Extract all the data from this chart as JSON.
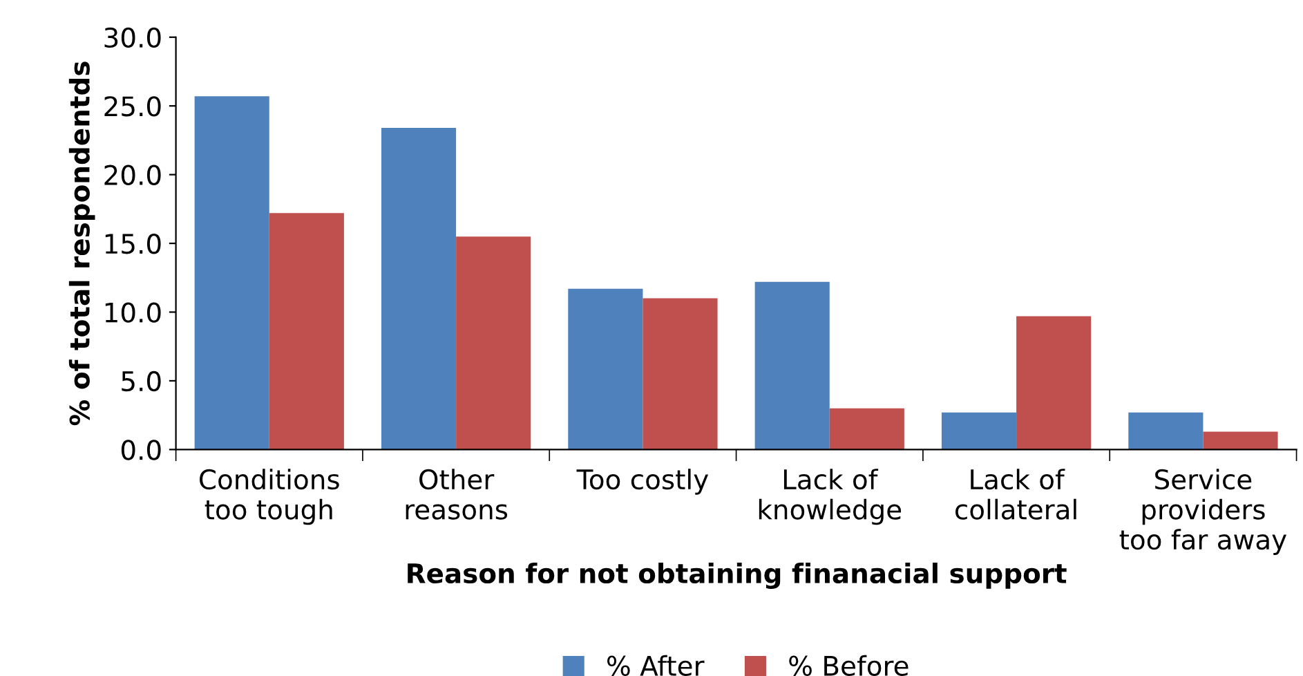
{
  "chart_data": {
    "type": "bar",
    "xlabel": "Reason for not obtaining finanacial support",
    "ylabel": "% of total respondentds",
    "categories": [
      "Conditions\ntoo tough",
      "Other\nreasons",
      "Too costly",
      "Lack of\nknowledge",
      "Lack of\ncollateral",
      "Service\nproviders\ntoo far away"
    ],
    "series": [
      {
        "name": "% After",
        "color": "#4f81bd",
        "values": [
          25.7,
          23.4,
          11.7,
          12.2,
          2.7,
          2.7
        ]
      },
      {
        "name": "% Before",
        "color": "#c0504d",
        "values": [
          17.2,
          15.5,
          11.0,
          3.0,
          9.7,
          1.3
        ]
      }
    ],
    "ylim": [
      0,
      30
    ],
    "yticks": [
      {
        "value": 0,
        "label": "0.0"
      },
      {
        "value": 5,
        "label": "5.0"
      },
      {
        "value": 10,
        "label": "10.0"
      },
      {
        "value": 15,
        "label": "15.0"
      },
      {
        "value": 20,
        "label": "20.0"
      },
      {
        "value": 25,
        "label": "25.0"
      },
      {
        "value": 30,
        "label": "30.0"
      }
    ],
    "grid": false,
    "legend": "bottom"
  }
}
